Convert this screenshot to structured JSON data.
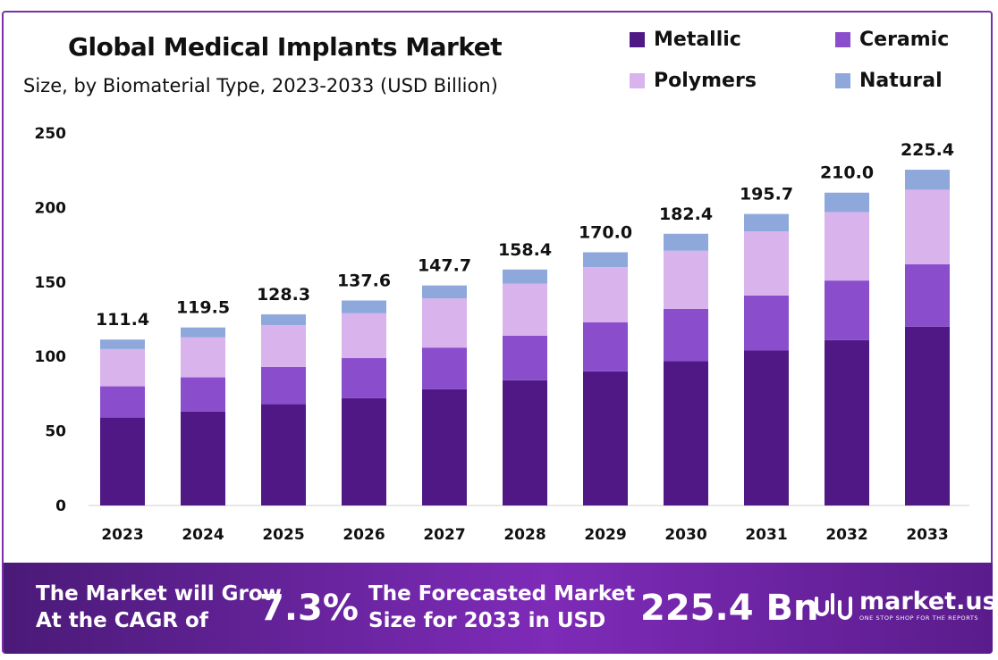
{
  "title": "Global Medical Implants Market",
  "subtitle": "Size, by Biomaterial Type, 2023-2033 (USD Billion)",
  "colors": {
    "metallic": "#4f1884",
    "ceramic": "#8a4dcc",
    "polymers": "#d8b3ec",
    "natural": "#8ea8dc",
    "banner": "#6a23a0"
  },
  "chart_data": {
    "type": "bar",
    "stacked": true,
    "categories": [
      "2023",
      "2024",
      "2025",
      "2026",
      "2027",
      "2028",
      "2029",
      "2030",
      "2031",
      "2032",
      "2033"
    ],
    "totals": [
      111.4,
      119.5,
      128.3,
      137.6,
      147.7,
      158.4,
      170.0,
      182.4,
      195.7,
      210.0,
      225.4
    ],
    "total_labels": [
      "111.4",
      "119.5",
      "128.3",
      "137.6",
      "147.7",
      "158.4",
      "170.0",
      "182.4",
      "195.7",
      "210.0",
      "225.4"
    ],
    "series": [
      {
        "name": "Metallic",
        "color": "#4f1884",
        "values": [
          59,
          63,
          68,
          72,
          78,
          84,
          90,
          97,
          104,
          111,
          120
        ]
      },
      {
        "name": "Ceramic",
        "color": "#8a4dcc",
        "values": [
          21,
          23,
          25,
          27,
          28,
          30,
          33,
          35,
          37,
          40,
          42
        ]
      },
      {
        "name": "Polymers",
        "color": "#d8b3ec",
        "values": [
          25,
          27,
          28,
          30,
          33,
          35,
          37,
          39,
          43,
          46,
          50
        ]
      },
      {
        "name": "Natural",
        "color": "#8ea8dc",
        "values": [
          6.4,
          6.5,
          7.3,
          8.6,
          8.7,
          9.4,
          10.0,
          11.4,
          11.7,
          13.0,
          13.4
        ]
      }
    ],
    "ylim": [
      0,
      250
    ],
    "yticks": [
      0,
      50,
      100,
      150,
      200,
      250
    ],
    "grid": false,
    "legend_position": "top-right"
  },
  "legend": [
    {
      "label": "Metallic",
      "color": "#4f1884"
    },
    {
      "label": "Ceramic",
      "color": "#8a4dcc"
    },
    {
      "label": "Polymers",
      "color": "#d8b3ec"
    },
    {
      "label": "Natural",
      "color": "#8ea8dc"
    }
  ],
  "banner": {
    "cagr_line1": "The Market will Grow",
    "cagr_line2": "At the CAGR of",
    "cagr_value": "7.3%",
    "forecast_line1": "The Forecasted Market",
    "forecast_line2": "Size for 2033 in USD",
    "forecast_value": "225.4 Bn",
    "brand_name": "market.us",
    "brand_tagline": "ONE STOP SHOP FOR THE REPORTS"
  }
}
